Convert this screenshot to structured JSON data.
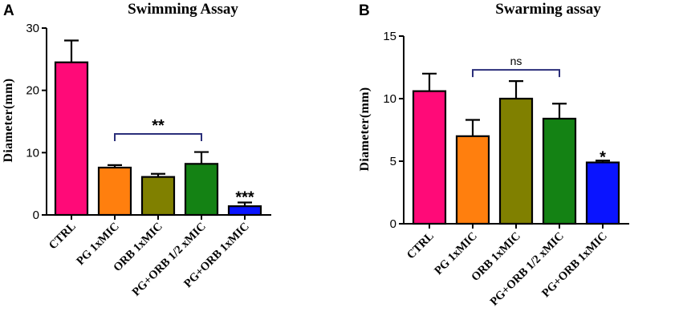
{
  "chart_data": [
    {
      "panel": "A",
      "type": "bar",
      "title": "Swimming Assay",
      "xlabel": "",
      "ylabel": "Diameter(mm)",
      "ylim": [
        0,
        30
      ],
      "yticks": [
        0,
        10,
        20,
        30
      ],
      "categories": [
        "CTRL",
        "PG 1xMIC",
        "ORB 1xMIC",
        "PG+ORB 1/2 xMIC",
        "PG+ORB 1xMIC"
      ],
      "values": [
        24.5,
        7.6,
        6.1,
        8.2,
        1.4
      ],
      "errors": [
        3.5,
        0.4,
        0.5,
        1.9,
        0.6
      ],
      "colors": [
        "#ff0a78",
        "#ff7f0e",
        "#808000",
        "#148214",
        "#0a14ff"
      ],
      "grid": false,
      "annotations": [
        {
          "text": "**",
          "type": "bracket",
          "from": 1,
          "to": 3,
          "y": 13.0
        },
        {
          "text": "***",
          "type": "star",
          "bar": 4,
          "y": 2.8
        }
      ]
    },
    {
      "panel": "B",
      "type": "bar",
      "title": "Swarming assay",
      "xlabel": "",
      "ylabel": "Diameter(mm)",
      "ylim": [
        0,
        15
      ],
      "yticks": [
        0,
        5,
        10,
        15
      ],
      "categories": [
        "CTRL",
        "PG 1xMIC",
        "ORB 1xMIC",
        "PG+ORB 1/2 xMIC",
        "PG+ORB 1xMIC"
      ],
      "values": [
        10.6,
        7.0,
        10.0,
        8.4,
        4.9
      ],
      "errors": [
        1.4,
        1.3,
        1.4,
        1.2,
        0.15
      ],
      "colors": [
        "#ff0a78",
        "#ff7f0e",
        "#808000",
        "#148214",
        "#0a14ff"
      ],
      "grid": false,
      "annotations": [
        {
          "text": "ns",
          "type": "bracket",
          "from": 1,
          "to": 3,
          "y": 12.3
        },
        {
          "text": "*",
          "type": "star",
          "bar": 4,
          "y": 5.3
        }
      ]
    }
  ]
}
